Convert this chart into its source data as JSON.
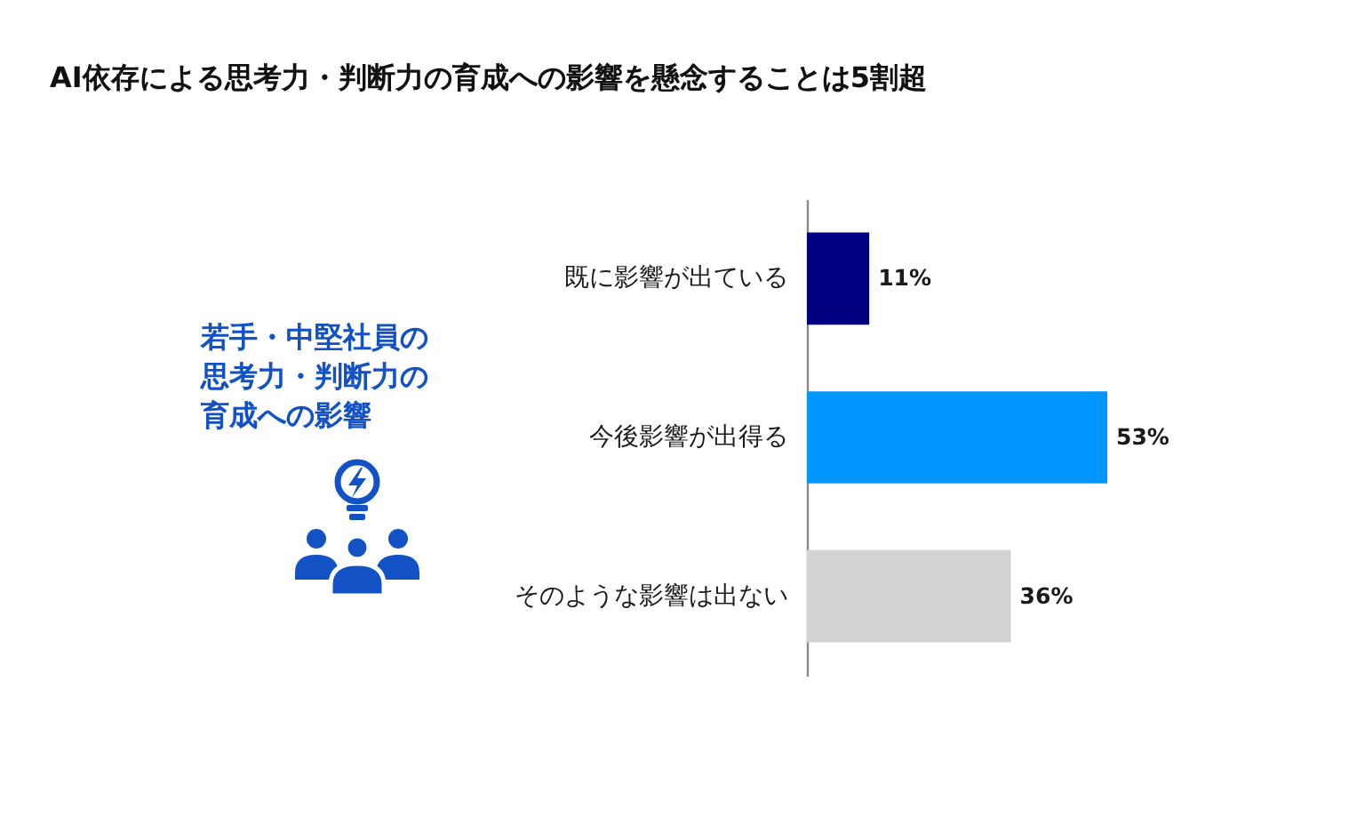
{
  "chart_data": {
    "type": "bar",
    "orientation": "horizontal",
    "title": "AI依存による思考力・判断力の育成への影響を懸念することは5割超",
    "categories": [
      "既に影響が出ている",
      "今後影響が出得る",
      "そのような影響は出ない"
    ],
    "values": [
      11,
      53,
      36
    ],
    "colors": [
      "#000080",
      "#0096ff",
      "#d3d3d3"
    ],
    "value_labels": [
      "11%",
      "53%",
      "36%"
    ],
    "annotations": [
      "若手・中堅社員の思考力・判断力の育成への影響"
    ]
  }
}
